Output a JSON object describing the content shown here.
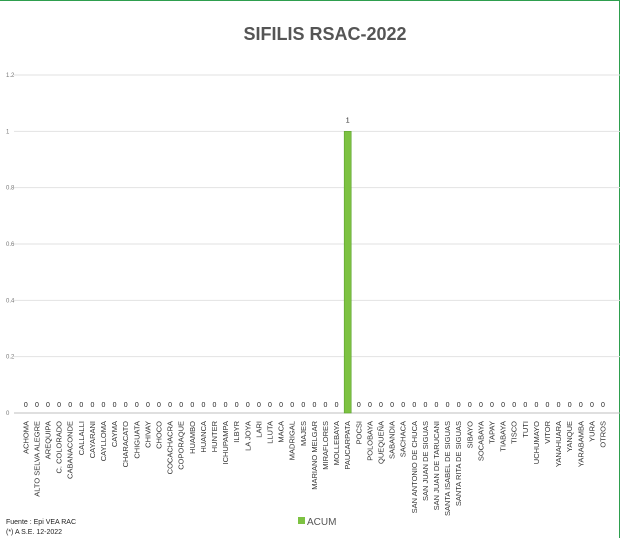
{
  "chart_data": {
    "type": "bar",
    "title": "SIFILIS RSAC-2022",
    "xlabel": "",
    "ylabel": "",
    "ylim": [
      0,
      1.2
    ],
    "yticks": [
      "0",
      "0.2",
      "0.4",
      "0.6",
      "0.8",
      "1",
      "1.2"
    ],
    "grid": true,
    "legend_position": "bottom",
    "categories": [
      "ACHOMA",
      "ALTO SELVA ALEGRE",
      "AREQUIPA",
      "C. COLORADO",
      "CABANACONDE",
      "CALLALLI",
      "CAYARANI",
      "CAYLLOMA",
      "CAYMA",
      "CHARACATO",
      "CHIGUATA",
      "CHIVAY",
      "CHOCO",
      "COCACHACRA",
      "COPORAQUE",
      "HUAMBO",
      "HUANCA",
      "HUNTER",
      "ICHUPAMPA",
      "ILBYR",
      "LA JOYA",
      "LARI",
      "LLUTA",
      "MACA",
      "MADRIGAL",
      "MAJES",
      "MARIANO MELGAR",
      "MIRAFLORES",
      "MOLLEBAYA",
      "PAUCARPATA",
      "POCSI",
      "POLOBAYA",
      "QUEQUEÑA",
      "SABANDIA",
      "SACHACA",
      "SAN ANTONIO DE CHUCA",
      "SAN JUAN DE SIGUAS",
      "SAN JUAN DE TARUCANI",
      "SANTA ISABEL DE SIGUAS",
      "SANTA RITA DE SIGUAS",
      "SIBAYO",
      "SOCABAYA",
      "TAPAY",
      "TIABAYA",
      "TISCO",
      "TUTI",
      "UCHUMAYO",
      "VITOR",
      "YANAHUARA",
      "YANQUE",
      "YARABAMBA",
      "YURA",
      "OTROS"
    ],
    "series": [
      {
        "name": "ACUM",
        "color": "#7dc242",
        "values": [
          0,
          0,
          0,
          0,
          0,
          0,
          0,
          0,
          0,
          0,
          0,
          0,
          0,
          0,
          0,
          0,
          0,
          0,
          0,
          0,
          0,
          0,
          0,
          0,
          0,
          0,
          0,
          0,
          0,
          1,
          0,
          0,
          0,
          0,
          0,
          0,
          0,
          0,
          0,
          0,
          0,
          0,
          0,
          0,
          0,
          0,
          0,
          0,
          0,
          0,
          0,
          0,
          0
        ]
      }
    ],
    "source_lines": [
      "Fuente : Epi VEA RAC",
      "(*) A S.E. 12-2022"
    ]
  }
}
